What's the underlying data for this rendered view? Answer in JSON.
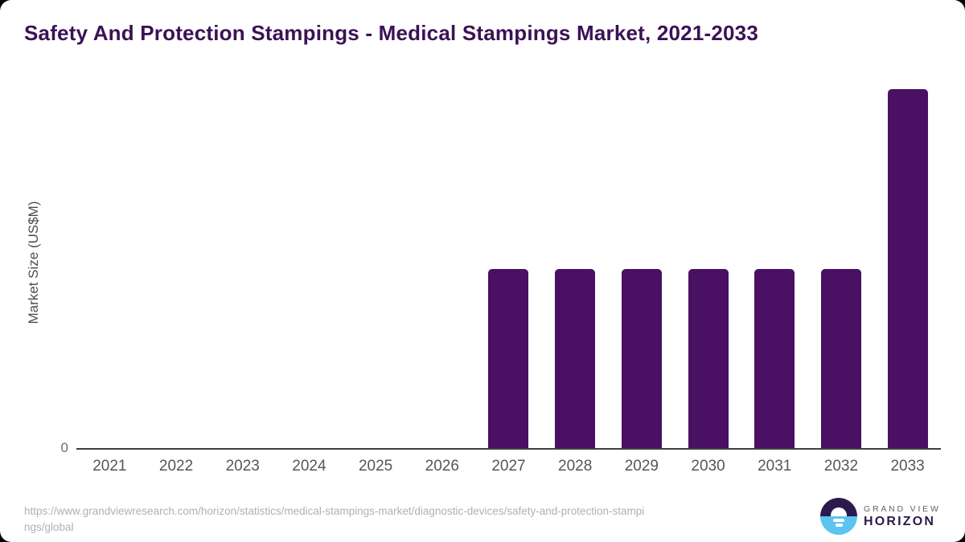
{
  "chart_data": {
    "type": "bar",
    "title": "Safety And Protection Stampings - Medical Stampings Market, 2021-2033",
    "categories": [
      "2021",
      "2022",
      "2023",
      "2024",
      "2025",
      "2026",
      "2027",
      "2028",
      "2029",
      "2030",
      "2031",
      "2032",
      "2033"
    ],
    "values": [
      0,
      0,
      0,
      0,
      0,
      0,
      50,
      50,
      50,
      50,
      50,
      50,
      100
    ],
    "xlabel": "",
    "ylabel": "Market Size (US$M)",
    "ylim": [
      0,
      100
    ],
    "y_ticks": [
      "0"
    ],
    "grid": false,
    "legend": "none",
    "bar_color": "#4A1063"
  },
  "footer": {
    "source_url_line1": "https://www.grandviewresearch.com/horizon/statistics/medical-stampings-market/diagnostic-devices/safety-and-protection-stampi",
    "source_url_line2": "ngs/global"
  },
  "logo": {
    "brand_top": "GRAND VIEW",
    "brand_bottom": "HORIZON"
  },
  "colors": {
    "bar": "#4A1063",
    "title": "#3B1254",
    "axis_line": "#3f3f3f",
    "axis_labels": "#565656",
    "url_text": "#b1b1b4",
    "logo_navy": "#2A1A4D",
    "logo_blue": "#5BC4F0",
    "card_background": "#ffffff",
    "page_background": "#000000"
  }
}
